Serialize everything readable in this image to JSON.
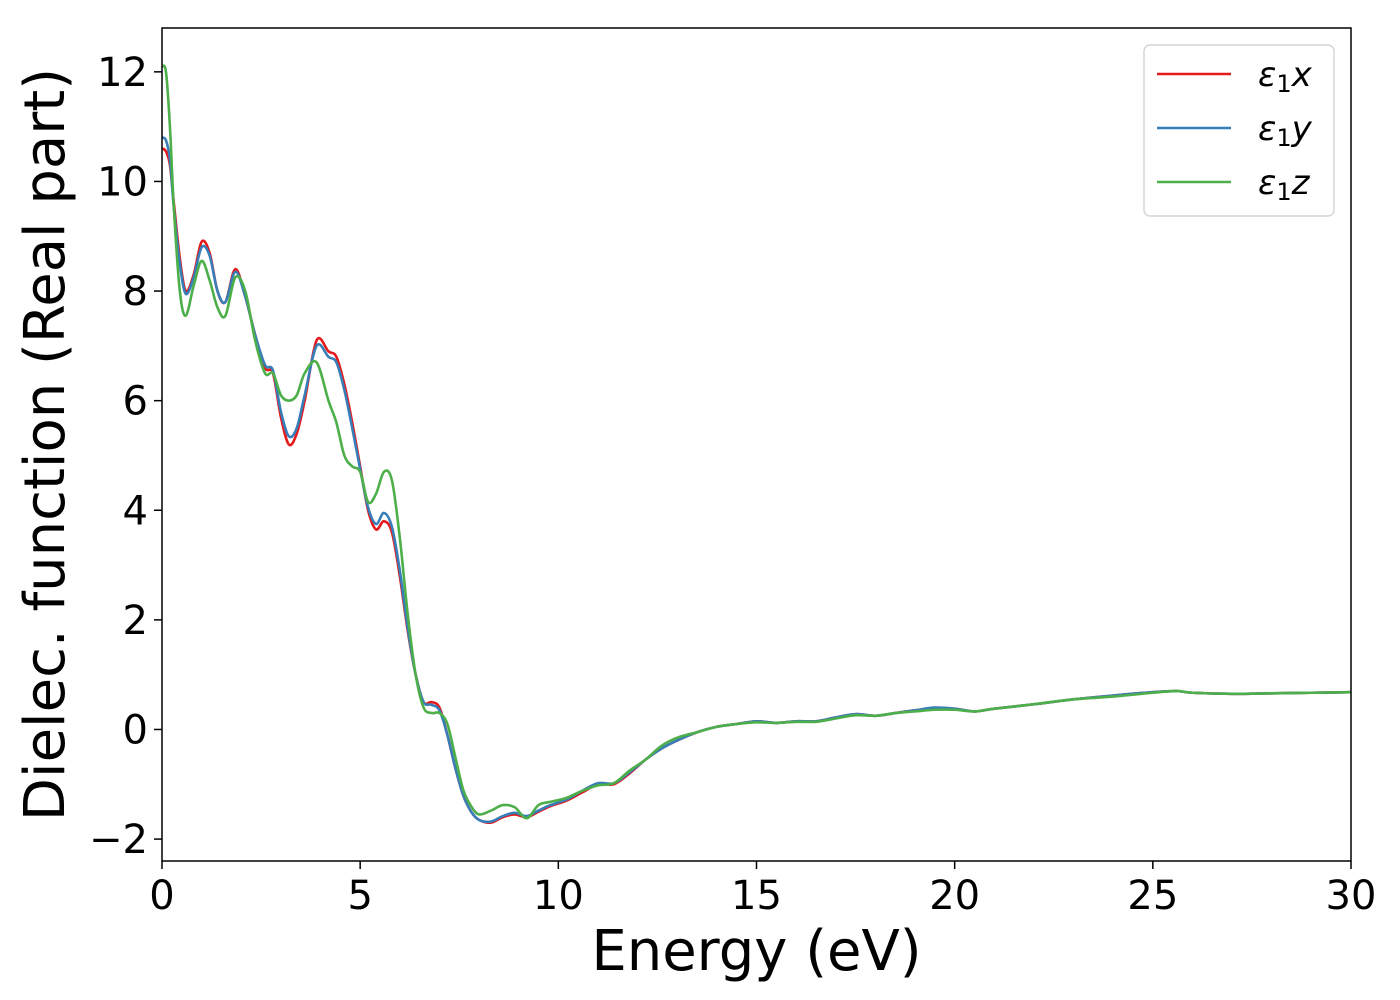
{
  "chart_data": {
    "type": "line",
    "xlabel": "Energy (eV)",
    "ylabel": "Dielec. function (Real part)",
    "xlim": [
      0,
      30
    ],
    "ylim": [
      -2.4,
      12.8
    ],
    "xticks": [
      0,
      5,
      10,
      15,
      20,
      25,
      30
    ],
    "yticks": [
      -2,
      0,
      2,
      4,
      6,
      8,
      10,
      12
    ],
    "xtick_labels": [
      "0",
      "5",
      "10",
      "15",
      "20",
      "25",
      "30"
    ],
    "ytick_labels": [
      "−2",
      "0",
      "2",
      "4",
      "6",
      "8",
      "10",
      "12"
    ],
    "grid": false,
    "legend_position": "top-right",
    "series": [
      {
        "name": "ε1x",
        "legend": {
          "base": "ε",
          "sub": "1",
          "suffix": "x"
        },
        "color": "#e41a1c",
        "x": [
          0.0,
          0.1,
          0.2,
          0.3,
          0.45,
          0.6,
          0.8,
          1.0,
          1.2,
          1.4,
          1.6,
          1.85,
          2.1,
          2.35,
          2.6,
          2.8,
          3.0,
          3.2,
          3.4,
          3.6,
          3.9,
          4.2,
          4.4,
          4.6,
          4.8,
          5.0,
          5.2,
          5.4,
          5.6,
          5.8,
          6.0,
          6.2,
          6.4,
          6.6,
          6.8,
          7.0,
          7.2,
          7.4,
          7.6,
          7.8,
          8.0,
          8.3,
          8.6,
          8.9,
          9.2,
          9.5,
          9.8,
          10.2,
          10.6,
          11.0,
          11.4,
          11.8,
          12.2,
          12.6,
          13.0,
          13.5,
          14.0,
          14.5,
          15.0,
          15.5,
          16.0,
          16.5,
          17.0,
          17.5,
          18.0,
          18.5,
          19.0,
          19.5,
          20.0,
          20.5,
          21.0,
          22.0,
          23.0,
          24.0,
          25.0,
          25.6,
          26.0,
          27.0,
          28.0,
          29.0,
          30.0
        ],
        "y": [
          10.6,
          10.55,
          10.3,
          9.6,
          8.6,
          8.0,
          8.3,
          8.9,
          8.7,
          8.0,
          7.8,
          8.4,
          7.9,
          7.2,
          6.6,
          6.5,
          5.7,
          5.2,
          5.4,
          6.0,
          7.1,
          6.9,
          6.8,
          6.3,
          5.6,
          4.8,
          4.0,
          3.65,
          3.8,
          3.6,
          2.8,
          1.8,
          1.0,
          0.5,
          0.5,
          0.4,
          -0.1,
          -0.7,
          -1.2,
          -1.5,
          -1.65,
          -1.7,
          -1.6,
          -1.55,
          -1.6,
          -1.5,
          -1.4,
          -1.3,
          -1.15,
          -1.0,
          -1.0,
          -0.8,
          -0.55,
          -0.35,
          -0.2,
          -0.05,
          0.05,
          0.1,
          0.15,
          0.12,
          0.15,
          0.15,
          0.22,
          0.28,
          0.25,
          0.3,
          0.35,
          0.38,
          0.38,
          0.33,
          0.38,
          0.46,
          0.55,
          0.62,
          0.68,
          0.7,
          0.67,
          0.65,
          0.66,
          0.67,
          0.68
        ]
      },
      {
        "name": "ε1y",
        "legend": {
          "base": "ε",
          "sub": "1",
          "suffix": "y"
        },
        "color": "#377eb8",
        "x": [
          0.0,
          0.1,
          0.2,
          0.3,
          0.45,
          0.6,
          0.8,
          1.0,
          1.2,
          1.4,
          1.6,
          1.85,
          2.1,
          2.35,
          2.6,
          2.8,
          3.0,
          3.2,
          3.4,
          3.6,
          3.9,
          4.2,
          4.4,
          4.6,
          4.8,
          5.0,
          5.2,
          5.4,
          5.6,
          5.8,
          6.0,
          6.2,
          6.4,
          6.6,
          6.8,
          7.0,
          7.2,
          7.4,
          7.6,
          7.8,
          8.0,
          8.3,
          8.6,
          8.9,
          9.2,
          9.5,
          9.8,
          10.2,
          10.6,
          11.0,
          11.4,
          11.8,
          12.2,
          12.6,
          13.0,
          13.5,
          14.0,
          14.5,
          15.0,
          15.5,
          16.0,
          16.5,
          17.0,
          17.5,
          18.0,
          18.5,
          19.0,
          19.5,
          20.0,
          20.5,
          21.0,
          22.0,
          23.0,
          24.0,
          25.0,
          25.6,
          26.0,
          27.0,
          28.0,
          29.0,
          30.0
        ],
        "y": [
          10.8,
          10.75,
          10.4,
          9.5,
          8.5,
          7.95,
          8.25,
          8.8,
          8.65,
          8.0,
          7.8,
          8.35,
          7.9,
          7.2,
          6.65,
          6.55,
          5.8,
          5.35,
          5.5,
          6.1,
          7.0,
          6.8,
          6.7,
          6.2,
          5.5,
          4.75,
          4.05,
          3.75,
          3.95,
          3.7,
          2.9,
          1.85,
          1.0,
          0.5,
          0.45,
          0.35,
          -0.1,
          -0.7,
          -1.2,
          -1.5,
          -1.65,
          -1.68,
          -1.58,
          -1.52,
          -1.58,
          -1.48,
          -1.38,
          -1.28,
          -1.12,
          -0.98,
          -0.98,
          -0.78,
          -0.55,
          -0.35,
          -0.2,
          -0.05,
          0.05,
          0.1,
          0.15,
          0.12,
          0.15,
          0.15,
          0.22,
          0.28,
          0.25,
          0.3,
          0.35,
          0.4,
          0.38,
          0.33,
          0.38,
          0.46,
          0.55,
          0.62,
          0.68,
          0.7,
          0.67,
          0.65,
          0.66,
          0.67,
          0.68
        ]
      },
      {
        "name": "ε1z",
        "legend": {
          "base": "ε",
          "sub": "1",
          "suffix": "z"
        },
        "color": "#4daf4a",
        "x": [
          0.0,
          0.1,
          0.2,
          0.3,
          0.45,
          0.6,
          0.8,
          1.0,
          1.2,
          1.4,
          1.6,
          1.85,
          2.1,
          2.35,
          2.6,
          2.8,
          3.0,
          3.2,
          3.4,
          3.6,
          3.9,
          4.2,
          4.4,
          4.6,
          4.8,
          5.0,
          5.2,
          5.4,
          5.6,
          5.8,
          6.0,
          6.2,
          6.4,
          6.6,
          6.8,
          7.0,
          7.2,
          7.4,
          7.6,
          7.8,
          8.0,
          8.3,
          8.6,
          8.9,
          9.2,
          9.5,
          9.8,
          10.2,
          10.6,
          11.0,
          11.4,
          11.8,
          12.2,
          12.6,
          13.0,
          13.5,
          14.0,
          14.5,
          15.0,
          15.5,
          16.0,
          16.5,
          17.0,
          17.5,
          18.0,
          18.5,
          19.0,
          19.5,
          20.0,
          20.5,
          21.0,
          22.0,
          23.0,
          24.0,
          25.0,
          25.6,
          26.0,
          27.0,
          28.0,
          29.0,
          30.0
        ],
        "y": [
          12.1,
          12.0,
          11.0,
          9.5,
          8.0,
          7.55,
          8.1,
          8.55,
          8.2,
          7.7,
          7.55,
          8.25,
          8.0,
          7.1,
          6.5,
          6.5,
          6.1,
          6.0,
          6.1,
          6.5,
          6.7,
          6.0,
          5.6,
          5.0,
          4.8,
          4.7,
          4.15,
          4.3,
          4.7,
          4.55,
          3.5,
          2.1,
          1.0,
          0.4,
          0.3,
          0.3,
          0.1,
          -0.5,
          -1.1,
          -1.4,
          -1.55,
          -1.48,
          -1.38,
          -1.42,
          -1.62,
          -1.38,
          -1.32,
          -1.25,
          -1.12,
          -1.02,
          -0.98,
          -0.75,
          -0.55,
          -0.3,
          -0.15,
          -0.05,
          0.05,
          0.1,
          0.13,
          0.12,
          0.14,
          0.14,
          0.2,
          0.26,
          0.25,
          0.3,
          0.33,
          0.36,
          0.36,
          0.33,
          0.38,
          0.46,
          0.55,
          0.6,
          0.67,
          0.7,
          0.67,
          0.65,
          0.66,
          0.67,
          0.68
        ]
      }
    ]
  }
}
